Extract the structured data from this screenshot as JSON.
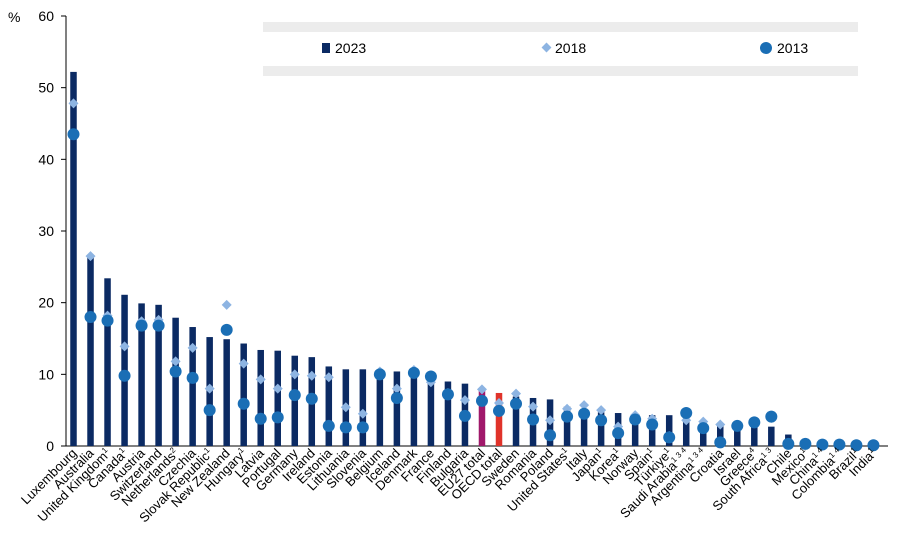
{
  "chart_data": {
    "type": "bar",
    "ylabel": "%",
    "ylim": [
      0,
      60
    ],
    "yticks": [
      0,
      10,
      20,
      30,
      40,
      50,
      60
    ],
    "grid": false,
    "legend_position": "top",
    "colors": {
      "bar_2023": "#0b2a63",
      "bar_eu27": "#a0186a",
      "bar_oecd": "#e0332a",
      "marker_2018": "#8db4e2",
      "marker_2013": "#1a6eb5",
      "legend_band": "#ececec",
      "axis": "#000000"
    },
    "categories": [
      {
        "name": "Luxembourg",
        "note": ""
      },
      {
        "name": "Australia",
        "note": ""
      },
      {
        "name": "United Kingdom",
        "note": "1"
      },
      {
        "name": "Canada",
        "note": "1"
      },
      {
        "name": "Austria",
        "note": ""
      },
      {
        "name": "Switzerland",
        "note": ""
      },
      {
        "name": "Netherlands",
        "note": "2"
      },
      {
        "name": "Czechia",
        "note": ""
      },
      {
        "name": "Slovak Republic",
        "note": "1"
      },
      {
        "name": "New Zealand",
        "note": ""
      },
      {
        "name": "Hungary",
        "note": "1"
      },
      {
        "name": "Latvia",
        "note": ""
      },
      {
        "name": "Portugal",
        "note": ""
      },
      {
        "name": "Germany",
        "note": ""
      },
      {
        "name": "Ireland",
        "note": ""
      },
      {
        "name": "Estonia",
        "note": ""
      },
      {
        "name": "Lithuania",
        "note": ""
      },
      {
        "name": "Slovenia",
        "note": ""
      },
      {
        "name": "Belgium",
        "note": ""
      },
      {
        "name": "Iceland",
        "note": ""
      },
      {
        "name": "Denmark",
        "note": ""
      },
      {
        "name": "France",
        "note": ""
      },
      {
        "name": "Finland",
        "note": ""
      },
      {
        "name": "Bulgaria",
        "note": ""
      },
      {
        "name": "EU27 total",
        "note": ""
      },
      {
        "name": "OECD total",
        "note": ""
      },
      {
        "name": "Sweden",
        "note": ""
      },
      {
        "name": "Romania",
        "note": ""
      },
      {
        "name": "Poland",
        "note": ""
      },
      {
        "name": "United States",
        "note": "1"
      },
      {
        "name": "Italy",
        "note": ""
      },
      {
        "name": "Japan",
        "note": "1"
      },
      {
        "name": "Korea",
        "note": "1"
      },
      {
        "name": "Norway",
        "note": ""
      },
      {
        "name": "Spain",
        "note": "1"
      },
      {
        "name": "Türkiye",
        "note": "1"
      },
      {
        "name": "Saudi Arabia",
        "note": "1 3 4"
      },
      {
        "name": "Argentina",
        "note": "1 3 4"
      },
      {
        "name": "Croatia",
        "note": ""
      },
      {
        "name": "Israel",
        "note": ""
      },
      {
        "name": "Greece",
        "note": "4"
      },
      {
        "name": "South Africa",
        "note": "1 3"
      },
      {
        "name": "Chile",
        "note": ""
      },
      {
        "name": "Mexico",
        "note": "1"
      },
      {
        "name": "China",
        "note": "1 4"
      },
      {
        "name": "Colombia",
        "note": "1 4"
      },
      {
        "name": "Brazil",
        "note": "1"
      },
      {
        "name": "India",
        "note": "1"
      }
    ],
    "series": [
      {
        "name": "2023",
        "kind": "bar",
        "values": [
          52.2,
          26.5,
          23.4,
          21.1,
          19.9,
          19.7,
          17.9,
          16.6,
          15.2,
          14.9,
          14.3,
          13.4,
          13.3,
          12.6,
          12.4,
          11.1,
          10.7,
          10.7,
          10.6,
          10.4,
          10.2,
          9.3,
          9.0,
          8.7,
          7.8,
          7.4,
          6.9,
          6.7,
          6.5,
          5.5,
          5.0,
          4.7,
          4.6,
          4.4,
          4.3,
          4.3,
          3.9,
          3.0,
          3.0,
          3.0,
          2.9,
          2.7,
          1.6,
          1.0,
          0.7,
          0.5,
          0.3,
          0.3
        ]
      },
      {
        "name": "2018",
        "kind": "diamond",
        "values": [
          47.8,
          26.5,
          18.2,
          13.9,
          17.4,
          17.6,
          11.8,
          13.7,
          8.0,
          19.7,
          11.5,
          9.3,
          8.0,
          10.0,
          9.8,
          9.6,
          5.4,
          4.5,
          10.4,
          8.0,
          10.6,
          8.9,
          7.4,
          6.4,
          7.9,
          6.0,
          7.3,
          5.5,
          3.6,
          5.2,
          5.7,
          5.0,
          2.7,
          4.3,
          3.8,
          1.4,
          3.6,
          3.4,
          3.0,
          null,
          3.3,
          3.9,
          null,
          null,
          null,
          null,
          null,
          null
        ]
      },
      {
        "name": "2013",
        "kind": "circle",
        "values": [
          43.5,
          18.0,
          17.5,
          9.8,
          16.8,
          16.8,
          10.4,
          9.5,
          5.0,
          16.2,
          5.9,
          3.8,
          4.0,
          7.1,
          6.6,
          2.8,
          2.6,
          2.6,
          10.0,
          6.7,
          10.2,
          9.7,
          7.2,
          4.2,
          6.3,
          4.9,
          5.9,
          3.7,
          1.5,
          4.1,
          4.5,
          3.6,
          1.8,
          3.7,
          3.0,
          1.2,
          4.6,
          2.5,
          0.5,
          2.8,
          3.3,
          4.1,
          0.3,
          0.3,
          0.2,
          0.2,
          0.1,
          0.1
        ]
      }
    ]
  }
}
